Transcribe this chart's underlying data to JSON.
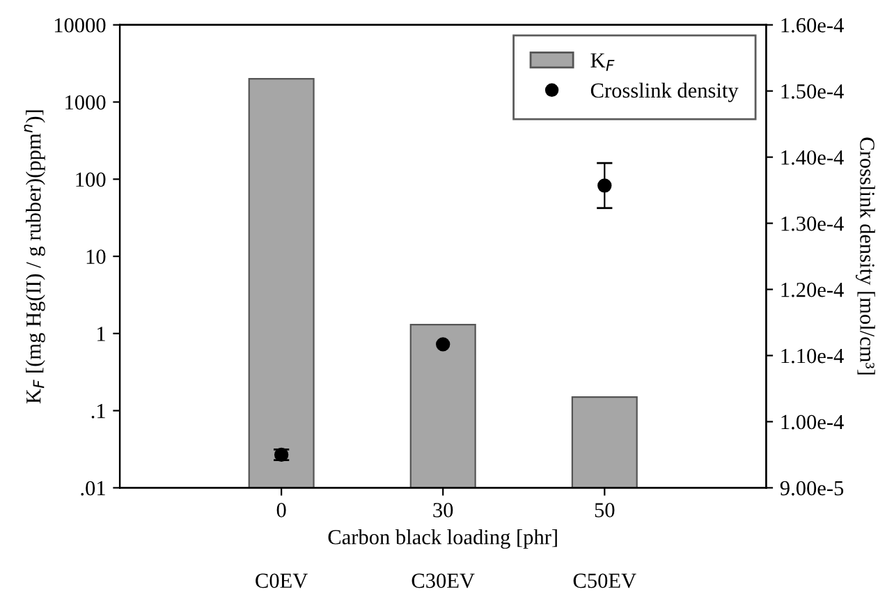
{
  "chart_data": {
    "type": "bar",
    "categories": [
      "0",
      "30",
      "50"
    ],
    "xlabel": "Carbon black loading [phr]",
    "ylabel": "K$_{F}$ [(mg Hg(II) / g rubber)(ppm$^{n}$)]",
    "y2label": "Crosslink density [mol/cm³]",
    "log": "y",
    "ylim": [
      0.01,
      10000
    ],
    "yticks": [
      {
        "value": 0.01,
        "label": ".01"
      },
      {
        "value": 0.1,
        "label": ".1"
      },
      1,
      10,
      100,
      1000,
      10000
    ],
    "y2lim": [
      9e-05,
      0.00016
    ],
    "y2ticks": [
      {
        "value": 9e-05,
        "label": "9.00e-5"
      },
      {
        "value": 0.0001,
        "label": "1.00e-4"
      },
      {
        "value": 0.00011,
        "label": "1.10e-4"
      },
      {
        "value": 0.00012,
        "label": "1.20e-4"
      },
      {
        "value": 0.00013,
        "label": "1.30e-4"
      },
      {
        "value": 0.00014,
        "label": "1.40e-4"
      },
      {
        "value": 0.00015,
        "label": "1.50e-4"
      },
      {
        "value": 0.00016,
        "label": "1.60e-4"
      }
    ],
    "series": [
      {
        "name": "K$_{F}$",
        "color": "#a6a6a6",
        "values": [
          2000,
          1.3,
          0.15
        ]
      },
      {
        "name": "Crosslink density",
        "type": "scatter",
        "axis": "y2",
        "color": "#000000",
        "marker": "circle",
        "values": [
          9.5e-05,
          0.0001117,
          0.0001357
        ],
        "errors": [
          8e-07,
          null,
          3.4e-06
        ]
      }
    ],
    "legend": "top right",
    "grid": false,
    "annotations": [
      "C0EV",
      "C30EV",
      "C50EV"
    ]
  }
}
